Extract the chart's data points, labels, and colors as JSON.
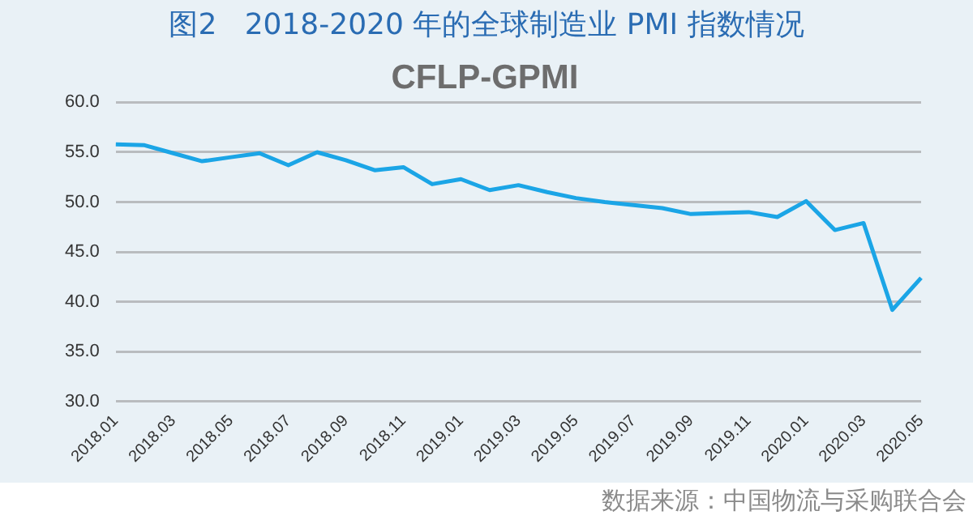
{
  "chart_data": {
    "type": "line",
    "title": "图2   2018-2020 年的全球制造业 PMI 指数情况",
    "subtitle": "CFLP-GPMI",
    "categories": [
      "2018.01",
      null,
      "2018.03",
      null,
      "2018.05",
      null,
      "2018.07",
      null,
      "2018.09",
      null,
      "2018.11",
      null,
      "2019.01",
      null,
      "2019.03",
      null,
      "2019.05",
      null,
      "2019.07",
      null,
      "2019.09",
      null,
      "2019.11",
      null,
      "2020.01",
      null,
      "2020.03",
      null,
      "2020.05"
    ],
    "series": [
      {
        "color": "#1ba5e6",
        "values": [
          55.8,
          55.7,
          54.9,
          54.1,
          54.5,
          54.9,
          53.7,
          55.0,
          54.2,
          53.2,
          53.5,
          51.8,
          52.3,
          51.2,
          51.7,
          51.0,
          50.4,
          50.0,
          49.7,
          49.4,
          48.8,
          48.9,
          49.0,
          48.5,
          50.1,
          47.2,
          47.9,
          39.2,
          42.4
        ]
      }
    ],
    "ylim": [
      30,
      60
    ],
    "yticks": [
      {
        "value": 30,
        "label": "30.0"
      },
      {
        "value": 35,
        "label": "35.0"
      },
      {
        "value": 40,
        "label": "40.0"
      },
      {
        "value": 45,
        "label": "45.0"
      },
      {
        "value": 50,
        "label": "50.0"
      },
      {
        "value": 55,
        "label": "55.0"
      },
      {
        "value": 60,
        "label": "60.0"
      }
    ],
    "grid": "y",
    "legend": false,
    "marker": "none",
    "line_style": "solid",
    "annotations": [
      "数据来源：中国物流与采购联合会"
    ]
  }
}
